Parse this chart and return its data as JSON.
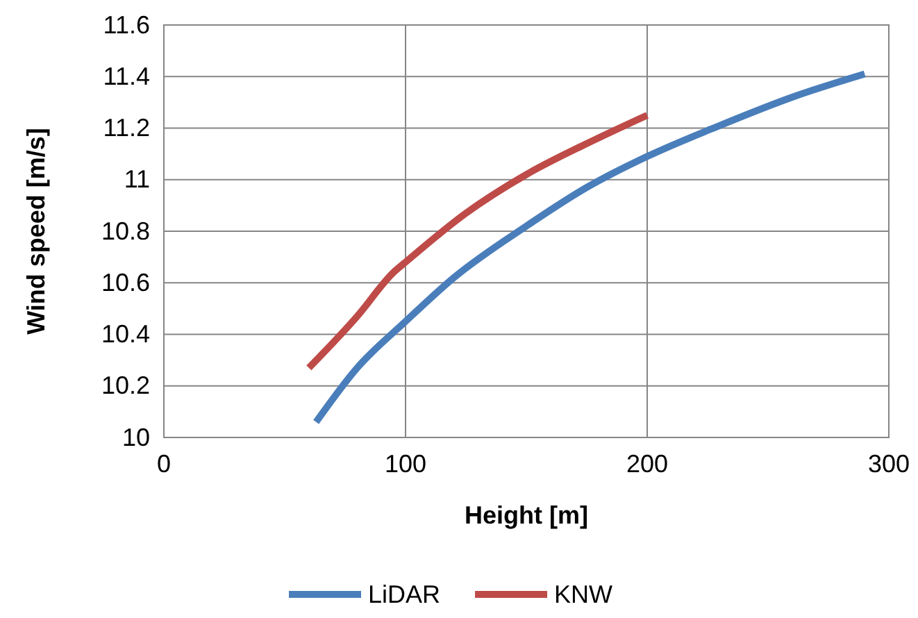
{
  "chart_data": {
    "type": "line",
    "xlabel": "Height [m]",
    "ylabel": "Wind speed [m/s]",
    "xlim": [
      0,
      300
    ],
    "xticks": [
      0,
      100,
      200,
      300
    ],
    "ylim": [
      10,
      11.6
    ],
    "yticks": [
      10,
      10.2,
      10.4,
      10.6,
      10.8,
      11,
      11.2,
      11.4,
      11.6
    ],
    "grid": true,
    "legend": "bottom",
    "marker": "none",
    "line_style": "solid",
    "series": [
      {
        "name": "LiDAR",
        "color": "#4a7ebb",
        "x": [
          63,
          80,
          100,
          120,
          150,
          175,
          200,
          230,
          260,
          290
        ],
        "values": [
          10.06,
          10.27,
          10.45,
          10.62,
          10.82,
          10.97,
          11.09,
          11.21,
          11.32,
          11.41
        ]
      },
      {
        "name": "KNW",
        "color": "#be4b48",
        "x": [
          60,
          80,
          95,
          100,
          125,
          150,
          175,
          200
        ],
        "values": [
          10.27,
          10.47,
          10.64,
          10.68,
          10.87,
          11.02,
          11.14,
          11.25
        ]
      }
    ]
  }
}
